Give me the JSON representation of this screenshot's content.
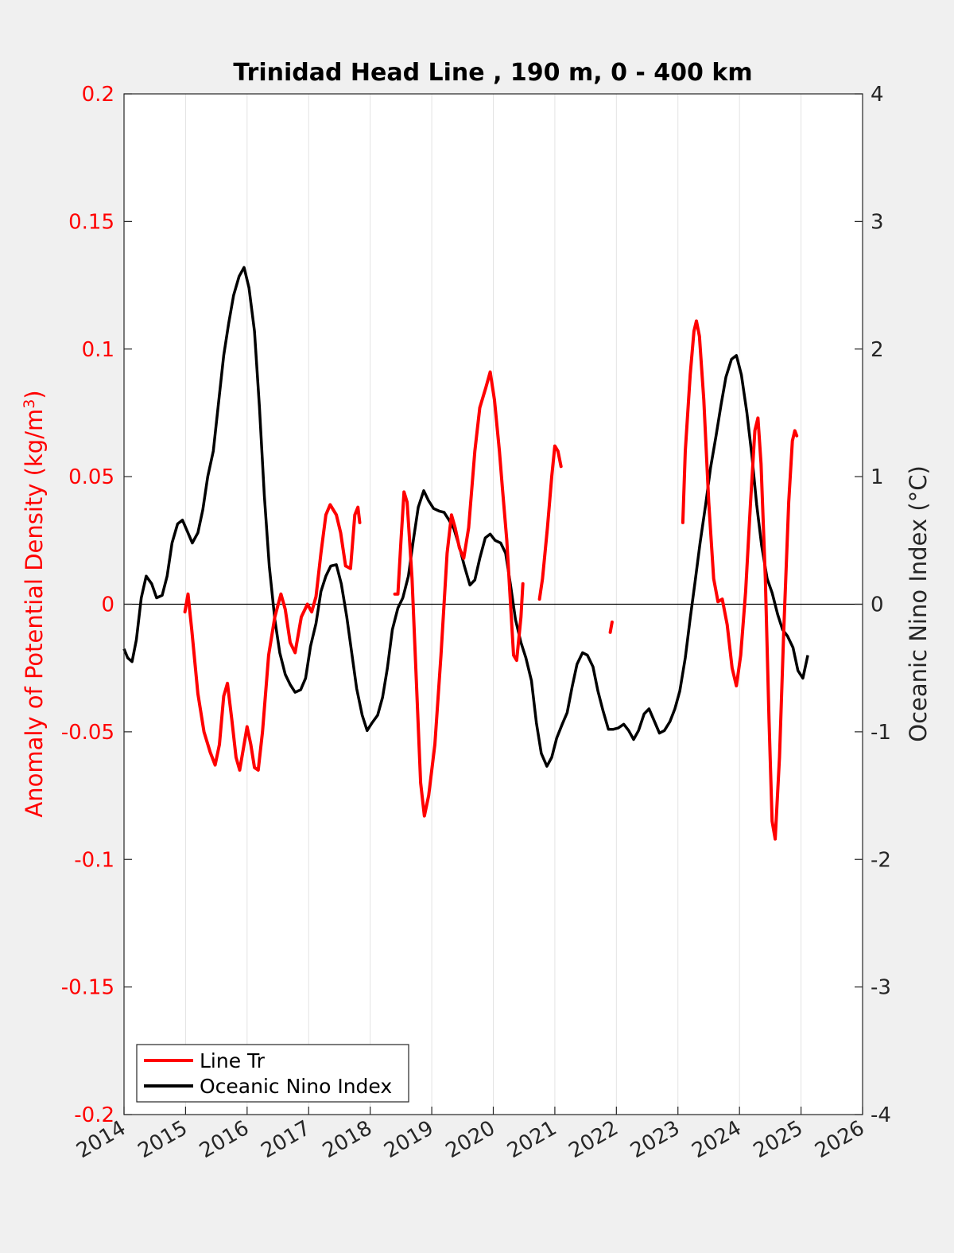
{
  "chart_data": {
    "type": "line",
    "title": "Trinidad Head Line , 190 m, 0 - 400 km",
    "xlabel": "",
    "ylabel_left": "Anomaly of Potential Density (kg/m",
    "ylabel_left_sup": "3",
    "ylabel_left_close": ")",
    "ylabel_right": "Oceanic Nino Index (°C)",
    "xlim": [
      2014,
      2026
    ],
    "ylim_left": [
      -0.2,
      0.2
    ],
    "ylim_right": [
      -4,
      4
    ],
    "x_ticks": [
      "2014",
      "2015",
      "2016",
      "2017",
      "2018",
      "2019",
      "2020",
      "2021",
      "2022",
      "2023",
      "2024",
      "2025",
      "2026"
    ],
    "y_ticks_left": [
      "-0.2",
      "-0.15",
      "-0.1",
      "-0.05",
      "0",
      "0.05",
      "0.1",
      "0.15",
      "0.2"
    ],
    "y_ticks_right": [
      "-4",
      "-3",
      "-2",
      "-1",
      "0",
      "1",
      "2",
      "3",
      "4"
    ],
    "grid": "vertical",
    "zero_line": true,
    "legend_position": "bottom-left",
    "colors": {
      "line_tr": "#ff0000",
      "oni": "#000000",
      "left_axis": "#ff0000",
      "right_axis": "#262626",
      "background": "#f0f0f0",
      "plot_background": "#ffffff"
    },
    "series": [
      {
        "name": "Line Tr",
        "axis": "left",
        "segments": [
          [
            [
              2014.99,
              -0.003
            ],
            [
              2015.04,
              0.004
            ],
            [
              2015.1,
              -0.01
            ],
            [
              2015.2,
              -0.035
            ],
            [
              2015.3,
              -0.05
            ],
            [
              2015.4,
              -0.058
            ],
            [
              2015.48,
              -0.063
            ],
            [
              2015.55,
              -0.055
            ],
            [
              2015.62,
              -0.036
            ],
            [
              2015.68,
              -0.031
            ],
            [
              2015.75,
              -0.045
            ],
            [
              2015.82,
              -0.06
            ],
            [
              2015.88,
              -0.065
            ],
            [
              2015.95,
              -0.055
            ],
            [
              2016.0,
              -0.048
            ],
            [
              2016.06,
              -0.055
            ],
            [
              2016.12,
              -0.064
            ],
            [
              2016.18,
              -0.065
            ],
            [
              2016.25,
              -0.05
            ],
            [
              2016.35,
              -0.02
            ],
            [
              2016.45,
              -0.005
            ],
            [
              2016.55,
              0.004
            ],
            [
              2016.62,
              -0.002
            ],
            [
              2016.7,
              -0.015
            ],
            [
              2016.78,
              -0.019
            ],
            [
              2016.88,
              -0.005
            ],
            [
              2016.98,
              0.0
            ],
            [
              2017.05,
              -0.003
            ],
            [
              2017.12,
              0.003
            ],
            [
              2017.2,
              0.02
            ],
            [
              2017.28,
              0.035
            ],
            [
              2017.35,
              0.039
            ],
            [
              2017.45,
              0.035
            ],
            [
              2017.52,
              0.028
            ],
            [
              2017.6,
              0.015
            ],
            [
              2017.68,
              0.014
            ],
            [
              2017.75,
              0.035
            ],
            [
              2017.8,
              0.038
            ],
            [
              2017.83,
              0.032
            ]
          ],
          [
            [
              2018.4,
              0.004
            ],
            [
              2018.45,
              0.004
            ],
            [
              2018.5,
              0.025
            ],
            [
              2018.55,
              0.044
            ],
            [
              2018.6,
              0.04
            ],
            [
              2018.68,
              0.01
            ],
            [
              2018.75,
              -0.03
            ],
            [
              2018.82,
              -0.07
            ],
            [
              2018.88,
              -0.083
            ],
            [
              2018.95,
              -0.075
            ],
            [
              2019.05,
              -0.055
            ],
            [
              2019.15,
              -0.02
            ],
            [
              2019.25,
              0.02
            ],
            [
              2019.32,
              0.035
            ],
            [
              2019.38,
              0.03
            ],
            [
              2019.45,
              0.022
            ],
            [
              2019.52,
              0.018
            ],
            [
              2019.6,
              0.03
            ],
            [
              2019.7,
              0.06
            ],
            [
              2019.78,
              0.077
            ],
            [
              2019.88,
              0.085
            ],
            [
              2019.95,
              0.091
            ],
            [
              2020.02,
              0.08
            ],
            [
              2020.1,
              0.06
            ],
            [
              2020.15,
              0.045
            ],
            [
              2020.22,
              0.025
            ],
            [
              2020.28,
              0.0
            ],
            [
              2020.33,
              -0.02
            ],
            [
              2020.38,
              -0.022
            ],
            [
              2020.45,
              -0.005
            ],
            [
              2020.48,
              0.008
            ]
          ],
          [
            [
              2020.75,
              0.002
            ],
            [
              2020.8,
              0.01
            ],
            [
              2020.88,
              0.03
            ],
            [
              2020.95,
              0.05
            ],
            [
              2021.0,
              0.062
            ],
            [
              2021.05,
              0.06
            ],
            [
              2021.1,
              0.054
            ]
          ],
          [
            [
              2021.9,
              -0.011
            ],
            [
              2021.93,
              -0.007
            ]
          ],
          [
            [
              2023.08,
              0.032
            ],
            [
              2023.12,
              0.06
            ],
            [
              2023.2,
              0.09
            ],
            [
              2023.26,
              0.107
            ],
            [
              2023.3,
              0.111
            ],
            [
              2023.35,
              0.105
            ],
            [
              2023.42,
              0.08
            ],
            [
              2023.5,
              0.04
            ],
            [
              2023.58,
              0.01
            ],
            [
              2023.65,
              0.001
            ],
            [
              2023.72,
              0.002
            ],
            [
              2023.8,
              -0.008
            ],
            [
              2023.88,
              -0.025
            ],
            [
              2023.95,
              -0.032
            ],
            [
              2024.02,
              -0.02
            ],
            [
              2024.1,
              0.005
            ],
            [
              2024.18,
              0.04
            ],
            [
              2024.25,
              0.068
            ],
            [
              2024.3,
              0.073
            ],
            [
              2024.35,
              0.055
            ],
            [
              2024.42,
              0.01
            ],
            [
              2024.48,
              -0.045
            ],
            [
              2024.53,
              -0.085
            ],
            [
              2024.58,
              -0.092
            ],
            [
              2024.65,
              -0.06
            ],
            [
              2024.72,
              -0.01
            ],
            [
              2024.8,
              0.04
            ],
            [
              2024.86,
              0.064
            ],
            [
              2024.9,
              0.068
            ],
            [
              2024.93,
              0.066
            ]
          ]
        ]
      },
      {
        "name": "Oceanic Nino Index",
        "axis": "right",
        "values": [
          [
            2014.0,
            -0.35
          ],
          [
            2014.06,
            -0.42
          ],
          [
            2014.13,
            -0.45
          ],
          [
            2014.2,
            -0.28
          ],
          [
            2014.28,
            0.05
          ],
          [
            2014.36,
            0.22
          ],
          [
            2014.45,
            0.16
          ],
          [
            2014.53,
            0.05
          ],
          [
            2014.62,
            0.07
          ],
          [
            2014.7,
            0.22
          ],
          [
            2014.78,
            0.48
          ],
          [
            2014.87,
            0.63
          ],
          [
            2014.95,
            0.66
          ],
          [
            2015.03,
            0.57
          ],
          [
            2015.11,
            0.48
          ],
          [
            2015.2,
            0.56
          ],
          [
            2015.28,
            0.74
          ],
          [
            2015.36,
            1.0
          ],
          [
            2015.45,
            1.2
          ],
          [
            2015.53,
            1.55
          ],
          [
            2015.62,
            1.95
          ],
          [
            2015.7,
            2.2
          ],
          [
            2015.78,
            2.42
          ],
          [
            2015.87,
            2.57
          ],
          [
            2015.95,
            2.64
          ],
          [
            2016.03,
            2.48
          ],
          [
            2016.12,
            2.14
          ],
          [
            2016.2,
            1.55
          ],
          [
            2016.28,
            0.85
          ],
          [
            2016.36,
            0.3
          ],
          [
            2016.45,
            -0.12
          ],
          [
            2016.53,
            -0.38
          ],
          [
            2016.62,
            -0.55
          ],
          [
            2016.7,
            -0.63
          ],
          [
            2016.78,
            -0.69
          ],
          [
            2016.87,
            -0.67
          ],
          [
            2016.95,
            -0.58
          ],
          [
            2017.03,
            -0.33
          ],
          [
            2017.12,
            -0.15
          ],
          [
            2017.2,
            0.1
          ],
          [
            2017.28,
            0.22
          ],
          [
            2017.36,
            0.3
          ],
          [
            2017.45,
            0.31
          ],
          [
            2017.53,
            0.16
          ],
          [
            2017.62,
            -0.1
          ],
          [
            2017.7,
            -0.38
          ],
          [
            2017.78,
            -0.66
          ],
          [
            2017.87,
            -0.87
          ],
          [
            2017.95,
            -0.99
          ],
          [
            2018.03,
            -0.93
          ],
          [
            2018.12,
            -0.87
          ],
          [
            2018.2,
            -0.73
          ],
          [
            2018.28,
            -0.5
          ],
          [
            2018.36,
            -0.2
          ],
          [
            2018.45,
            -0.03
          ],
          [
            2018.53,
            0.05
          ],
          [
            2018.62,
            0.22
          ],
          [
            2018.7,
            0.5
          ],
          [
            2018.78,
            0.76
          ],
          [
            2018.87,
            0.89
          ],
          [
            2018.95,
            0.81
          ],
          [
            2019.03,
            0.75
          ],
          [
            2019.12,
            0.73
          ],
          [
            2019.2,
            0.72
          ],
          [
            2019.28,
            0.66
          ],
          [
            2019.36,
            0.59
          ],
          [
            2019.45,
            0.45
          ],
          [
            2019.53,
            0.3
          ],
          [
            2019.62,
            0.15
          ],
          [
            2019.7,
            0.19
          ],
          [
            2019.78,
            0.36
          ],
          [
            2019.87,
            0.52
          ],
          [
            2019.95,
            0.55
          ],
          [
            2020.03,
            0.5
          ],
          [
            2020.12,
            0.48
          ],
          [
            2020.2,
            0.4
          ],
          [
            2020.28,
            0.15
          ],
          [
            2020.36,
            -0.12
          ],
          [
            2020.45,
            -0.3
          ],
          [
            2020.53,
            -0.42
          ],
          [
            2020.62,
            -0.6
          ],
          [
            2020.7,
            -0.93
          ],
          [
            2020.78,
            -1.17
          ],
          [
            2020.87,
            -1.27
          ],
          [
            2020.95,
            -1.2
          ],
          [
            2021.03,
            -1.05
          ],
          [
            2021.12,
            -0.94
          ],
          [
            2021.2,
            -0.85
          ],
          [
            2021.28,
            -0.65
          ],
          [
            2021.36,
            -0.47
          ],
          [
            2021.45,
            -0.38
          ],
          [
            2021.53,
            -0.4
          ],
          [
            2021.62,
            -0.49
          ],
          [
            2021.7,
            -0.68
          ],
          [
            2021.78,
            -0.83
          ],
          [
            2021.87,
            -0.98
          ],
          [
            2021.95,
            -0.98
          ],
          [
            2022.03,
            -0.97
          ],
          [
            2022.12,
            -0.94
          ],
          [
            2022.2,
            -0.99
          ],
          [
            2022.28,
            -1.06
          ],
          [
            2022.36,
            -0.99
          ],
          [
            2022.45,
            -0.86
          ],
          [
            2022.53,
            -0.82
          ],
          [
            2022.62,
            -0.92
          ],
          [
            2022.7,
            -1.01
          ],
          [
            2022.78,
            -0.99
          ],
          [
            2022.87,
            -0.92
          ],
          [
            2022.95,
            -0.82
          ],
          [
            2023.03,
            -0.68
          ],
          [
            2023.12,
            -0.42
          ],
          [
            2023.2,
            -0.11
          ],
          [
            2023.28,
            0.18
          ],
          [
            2023.36,
            0.48
          ],
          [
            2023.45,
            0.78
          ],
          [
            2023.53,
            1.07
          ],
          [
            2023.62,
            1.32
          ],
          [
            2023.7,
            1.56
          ],
          [
            2023.78,
            1.78
          ],
          [
            2023.87,
            1.92
          ],
          [
            2023.95,
            1.95
          ],
          [
            2024.03,
            1.8
          ],
          [
            2024.12,
            1.5
          ],
          [
            2024.2,
            1.17
          ],
          [
            2024.28,
            0.78
          ],
          [
            2024.36,
            0.46
          ],
          [
            2024.45,
            0.2
          ],
          [
            2024.53,
            0.09
          ],
          [
            2024.62,
            -0.08
          ],
          [
            2024.7,
            -0.2
          ],
          [
            2024.78,
            -0.25
          ],
          [
            2024.87,
            -0.34
          ],
          [
            2024.95,
            -0.52
          ],
          [
            2025.03,
            -0.58
          ],
          [
            2025.11,
            -0.4
          ]
        ]
      }
    ]
  }
}
